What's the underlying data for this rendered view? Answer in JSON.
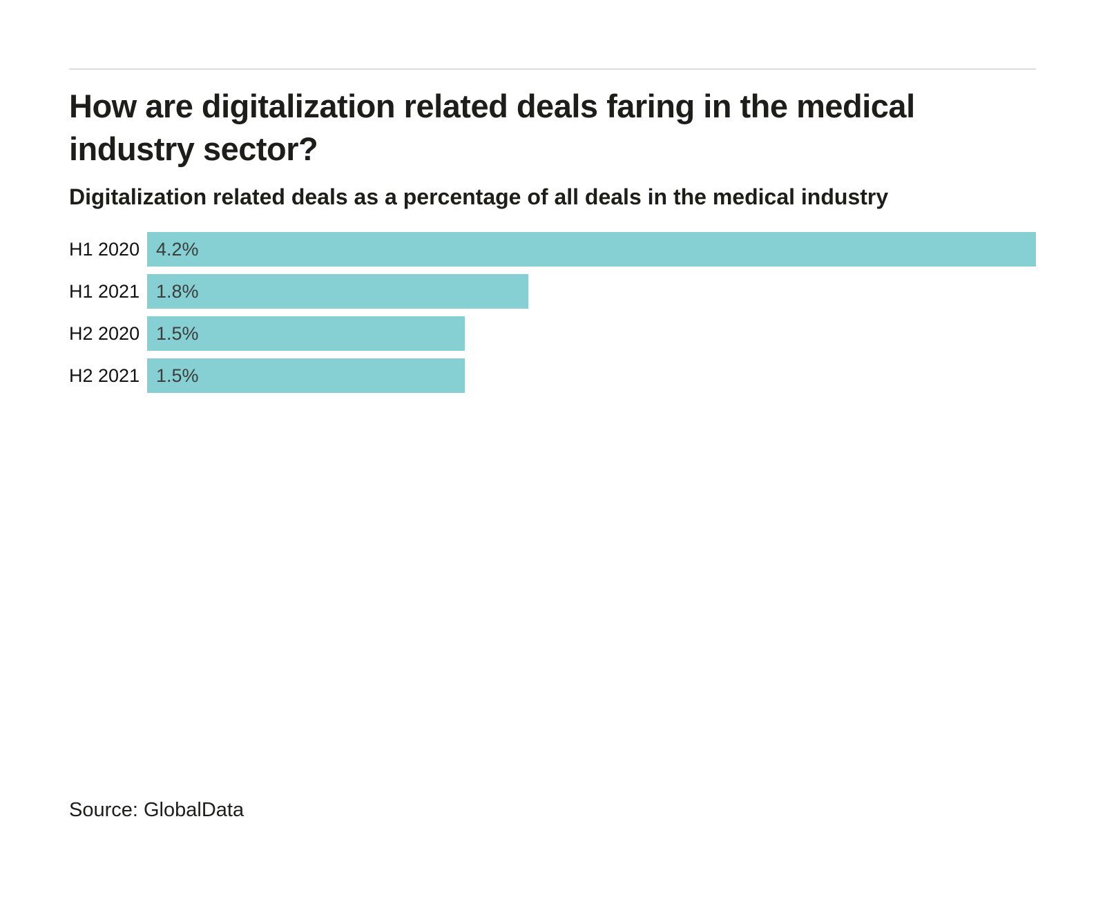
{
  "header": {
    "title": "How are digitalization related deals faring in the medical industry sector?",
    "subtitle": "Digitalization related deals as a percentage of all deals in the medical industry"
  },
  "chart_data": {
    "type": "bar",
    "orientation": "horizontal",
    "title": "How are digitalization related deals faring in the medical industry sector?",
    "subtitle": "Digitalization related deals as a percentage of all deals in the medical industry",
    "categories": [
      "H1 2020",
      "H1 2021",
      "H2 2020",
      "H2 2021"
    ],
    "values": [
      4.2,
      1.8,
      1.5,
      1.5
    ],
    "value_labels": [
      "4.2%",
      "1.8%",
      "1.5%",
      "1.5%"
    ],
    "xlabel": "",
    "ylabel": "",
    "xlim": [
      0,
      4.2
    ],
    "grid": false,
    "legend_position": "none",
    "bar_color": "#86CFD3",
    "value_label_color": "#3d3d3c",
    "source": "Source: GlobalData"
  }
}
